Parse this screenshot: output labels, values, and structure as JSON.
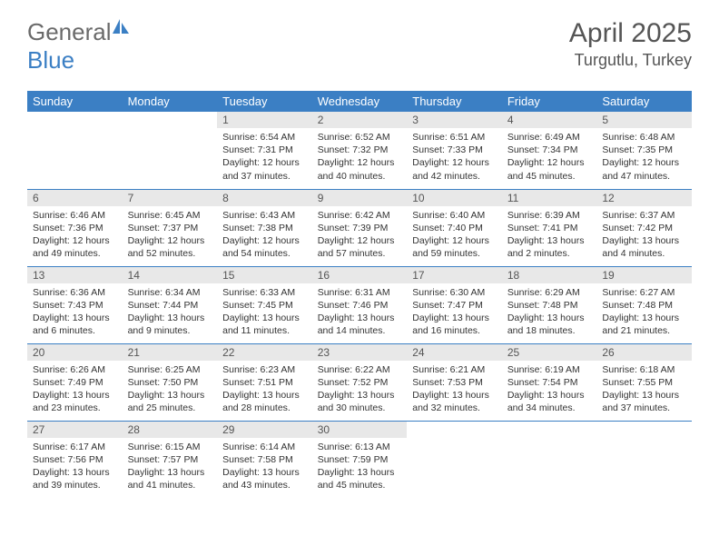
{
  "logo": {
    "text1": "General",
    "text2": "Blue"
  },
  "title": "April 2025",
  "location": "Turgutlu, Turkey",
  "colors": {
    "header_bg": "#3b7fc4",
    "header_fg": "#ffffff",
    "daynum_bg": "#e8e8e8",
    "row_border": "#3b7fc4",
    "text": "#333333",
    "title_color": "#555555",
    "logo_gray": "#6a6a6a",
    "logo_blue": "#3b7fc4",
    "background": "#ffffff"
  },
  "typography": {
    "month_title_size": 30,
    "location_size": 18,
    "weekday_size": 13,
    "daynum_size": 12,
    "body_size": 10.5
  },
  "weekdays": [
    "Sunday",
    "Monday",
    "Tuesday",
    "Wednesday",
    "Thursday",
    "Friday",
    "Saturday"
  ],
  "first_weekday_index": 2,
  "days": [
    {
      "n": "1",
      "sunrise": "6:54 AM",
      "sunset": "7:31 PM",
      "daylight": "12 hours and 37 minutes."
    },
    {
      "n": "2",
      "sunrise": "6:52 AM",
      "sunset": "7:32 PM",
      "daylight": "12 hours and 40 minutes."
    },
    {
      "n": "3",
      "sunrise": "6:51 AM",
      "sunset": "7:33 PM",
      "daylight": "12 hours and 42 minutes."
    },
    {
      "n": "4",
      "sunrise": "6:49 AM",
      "sunset": "7:34 PM",
      "daylight": "12 hours and 45 minutes."
    },
    {
      "n": "5",
      "sunrise": "6:48 AM",
      "sunset": "7:35 PM",
      "daylight": "12 hours and 47 minutes."
    },
    {
      "n": "6",
      "sunrise": "6:46 AM",
      "sunset": "7:36 PM",
      "daylight": "12 hours and 49 minutes."
    },
    {
      "n": "7",
      "sunrise": "6:45 AM",
      "sunset": "7:37 PM",
      "daylight": "12 hours and 52 minutes."
    },
    {
      "n": "8",
      "sunrise": "6:43 AM",
      "sunset": "7:38 PM",
      "daylight": "12 hours and 54 minutes."
    },
    {
      "n": "9",
      "sunrise": "6:42 AM",
      "sunset": "7:39 PM",
      "daylight": "12 hours and 57 minutes."
    },
    {
      "n": "10",
      "sunrise": "6:40 AM",
      "sunset": "7:40 PM",
      "daylight": "12 hours and 59 minutes."
    },
    {
      "n": "11",
      "sunrise": "6:39 AM",
      "sunset": "7:41 PM",
      "daylight": "13 hours and 2 minutes."
    },
    {
      "n": "12",
      "sunrise": "6:37 AM",
      "sunset": "7:42 PM",
      "daylight": "13 hours and 4 minutes."
    },
    {
      "n": "13",
      "sunrise": "6:36 AM",
      "sunset": "7:43 PM",
      "daylight": "13 hours and 6 minutes."
    },
    {
      "n": "14",
      "sunrise": "6:34 AM",
      "sunset": "7:44 PM",
      "daylight": "13 hours and 9 minutes."
    },
    {
      "n": "15",
      "sunrise": "6:33 AM",
      "sunset": "7:45 PM",
      "daylight": "13 hours and 11 minutes."
    },
    {
      "n": "16",
      "sunrise": "6:31 AM",
      "sunset": "7:46 PM",
      "daylight": "13 hours and 14 minutes."
    },
    {
      "n": "17",
      "sunrise": "6:30 AM",
      "sunset": "7:47 PM",
      "daylight": "13 hours and 16 minutes."
    },
    {
      "n": "18",
      "sunrise": "6:29 AM",
      "sunset": "7:48 PM",
      "daylight": "13 hours and 18 minutes."
    },
    {
      "n": "19",
      "sunrise": "6:27 AM",
      "sunset": "7:48 PM",
      "daylight": "13 hours and 21 minutes."
    },
    {
      "n": "20",
      "sunrise": "6:26 AM",
      "sunset": "7:49 PM",
      "daylight": "13 hours and 23 minutes."
    },
    {
      "n": "21",
      "sunrise": "6:25 AM",
      "sunset": "7:50 PM",
      "daylight": "13 hours and 25 minutes."
    },
    {
      "n": "22",
      "sunrise": "6:23 AM",
      "sunset": "7:51 PM",
      "daylight": "13 hours and 28 minutes."
    },
    {
      "n": "23",
      "sunrise": "6:22 AM",
      "sunset": "7:52 PM",
      "daylight": "13 hours and 30 minutes."
    },
    {
      "n": "24",
      "sunrise": "6:21 AM",
      "sunset": "7:53 PM",
      "daylight": "13 hours and 32 minutes."
    },
    {
      "n": "25",
      "sunrise": "6:19 AM",
      "sunset": "7:54 PM",
      "daylight": "13 hours and 34 minutes."
    },
    {
      "n": "26",
      "sunrise": "6:18 AM",
      "sunset": "7:55 PM",
      "daylight": "13 hours and 37 minutes."
    },
    {
      "n": "27",
      "sunrise": "6:17 AM",
      "sunset": "7:56 PM",
      "daylight": "13 hours and 39 minutes."
    },
    {
      "n": "28",
      "sunrise": "6:15 AM",
      "sunset": "7:57 PM",
      "daylight": "13 hours and 41 minutes."
    },
    {
      "n": "29",
      "sunrise": "6:14 AM",
      "sunset": "7:58 PM",
      "daylight": "13 hours and 43 minutes."
    },
    {
      "n": "30",
      "sunrise": "6:13 AM",
      "sunset": "7:59 PM",
      "daylight": "13 hours and 45 minutes."
    }
  ],
  "labels": {
    "sunrise": "Sunrise:",
    "sunset": "Sunset:",
    "daylight": "Daylight:"
  }
}
